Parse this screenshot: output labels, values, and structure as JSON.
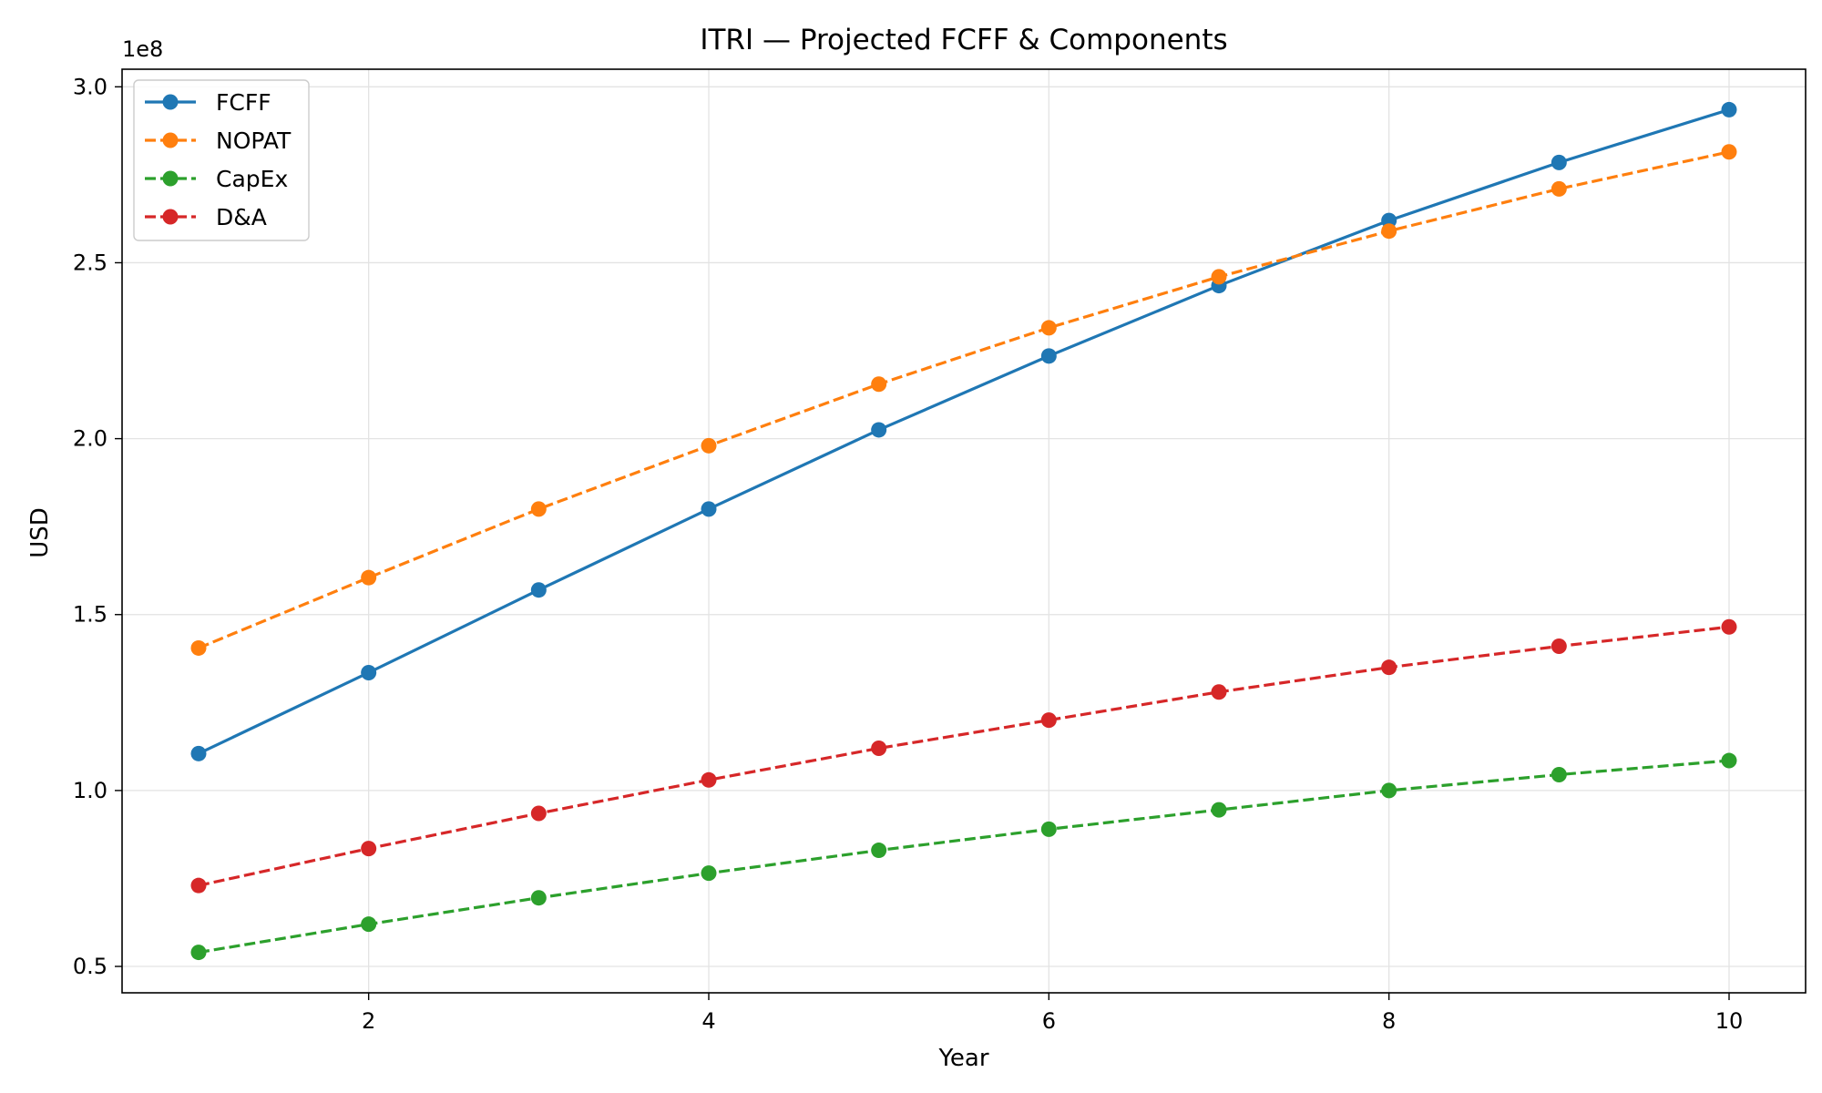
{
  "chart_data": {
    "type": "line",
    "title": "ITRI — Projected FCFF & Components",
    "xlabel": "Year",
    "ylabel": "USD",
    "y_offset_label": "1e8",
    "x": [
      1,
      2,
      3,
      4,
      5,
      6,
      7,
      8,
      9,
      10
    ],
    "xlim": [
      0.55,
      10.45
    ],
    "ylim": [
      42500000,
      305000000
    ],
    "x_ticks": [
      2,
      4,
      6,
      8,
      10
    ],
    "x_tick_labels": [
      "2",
      "4",
      "6",
      "8",
      "10"
    ],
    "y_ticks": [
      50000000,
      100000000,
      150000000,
      200000000,
      250000000,
      300000000
    ],
    "y_tick_labels": [
      "0.5",
      "1.0",
      "1.5",
      "2.0",
      "2.5",
      "3.0"
    ],
    "grid": true,
    "legend_position": "top-left",
    "series": [
      {
        "name": "FCFF",
        "color": "#1f77b4",
        "linestyle": "solid",
        "values": [
          110500000,
          133500000,
          157000000,
          180000000,
          202500000,
          223500000,
          243500000,
          262000000,
          278500000,
          293500000
        ]
      },
      {
        "name": "NOPAT",
        "color": "#ff7f0e",
        "linestyle": "dashed",
        "values": [
          140500000,
          160500000,
          180000000,
          198000000,
          215500000,
          231500000,
          246000000,
          259000000,
          271000000,
          281500000
        ]
      },
      {
        "name": "CapEx",
        "color": "#2ca02c",
        "linestyle": "dashed",
        "values": [
          54000000,
          62000000,
          69500000,
          76500000,
          83000000,
          89000000,
          94500000,
          100000000,
          104500000,
          108500000
        ]
      },
      {
        "name": "D&A",
        "color": "#d62728",
        "linestyle": "dashed",
        "values": [
          73000000,
          83500000,
          93500000,
          103000000,
          112000000,
          120000000,
          128000000,
          135000000,
          141000000,
          146500000
        ]
      }
    ]
  }
}
